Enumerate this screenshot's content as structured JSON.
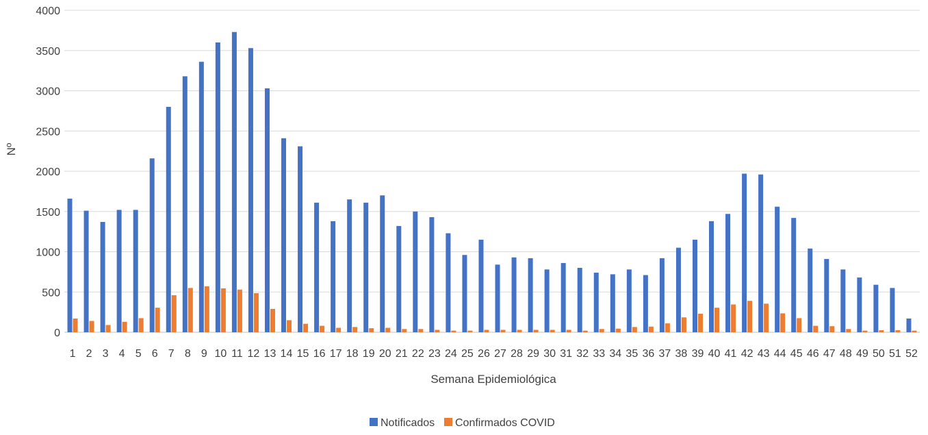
{
  "chart_data": {
    "type": "bar",
    "title": "",
    "xlabel": "Semana Epidemiológica",
    "ylabel": "Nº",
    "ylim": [
      0,
      4000
    ],
    "yticks": [
      0,
      500,
      1000,
      1500,
      2000,
      2500,
      3000,
      3500,
      4000
    ],
    "grid": true,
    "legend_position": "bottom",
    "categories": [
      "1",
      "2",
      "3",
      "4",
      "5",
      "6",
      "7",
      "8",
      "9",
      "10",
      "11",
      "12",
      "13",
      "14",
      "15",
      "16",
      "17",
      "18",
      "19",
      "20",
      "21",
      "22",
      "23",
      "24",
      "25",
      "26",
      "27",
      "28",
      "29",
      "30",
      "31",
      "32",
      "33",
      "34",
      "35",
      "36",
      "37",
      "38",
      "39",
      "40",
      "41",
      "42",
      "43",
      "44",
      "45",
      "46",
      "47",
      "48",
      "49",
      "50",
      "51",
      "52"
    ],
    "series": [
      {
        "name": "Notificados",
        "color": "#4472C4",
        "values": [
          1660,
          1510,
          1370,
          1520,
          1520,
          2160,
          2800,
          3180,
          3360,
          3600,
          3730,
          3530,
          3030,
          2410,
          2310,
          1610,
          1380,
          1650,
          1610,
          1700,
          1320,
          1500,
          1430,
          1230,
          960,
          1150,
          840,
          930,
          920,
          780,
          860,
          800,
          740,
          720,
          780,
          710,
          920,
          1050,
          1150,
          1380,
          1470,
          1970,
          1960,
          1560,
          1420,
          1040,
          910,
          780,
          680,
          590,
          550,
          170
        ]
      },
      {
        "name": "Confirmados COVID",
        "color": "#ED7D31",
        "values": [
          170,
          140,
          90,
          130,
          175,
          305,
          460,
          550,
          570,
          545,
          530,
          485,
          290,
          150,
          105,
          80,
          55,
          65,
          50,
          55,
          40,
          40,
          30,
          20,
          20,
          30,
          30,
          30,
          30,
          30,
          30,
          20,
          40,
          45,
          65,
          70,
          110,
          185,
          230,
          305,
          345,
          390,
          355,
          235,
          175,
          80,
          75,
          40,
          20,
          25,
          25,
          20
        ]
      }
    ]
  }
}
